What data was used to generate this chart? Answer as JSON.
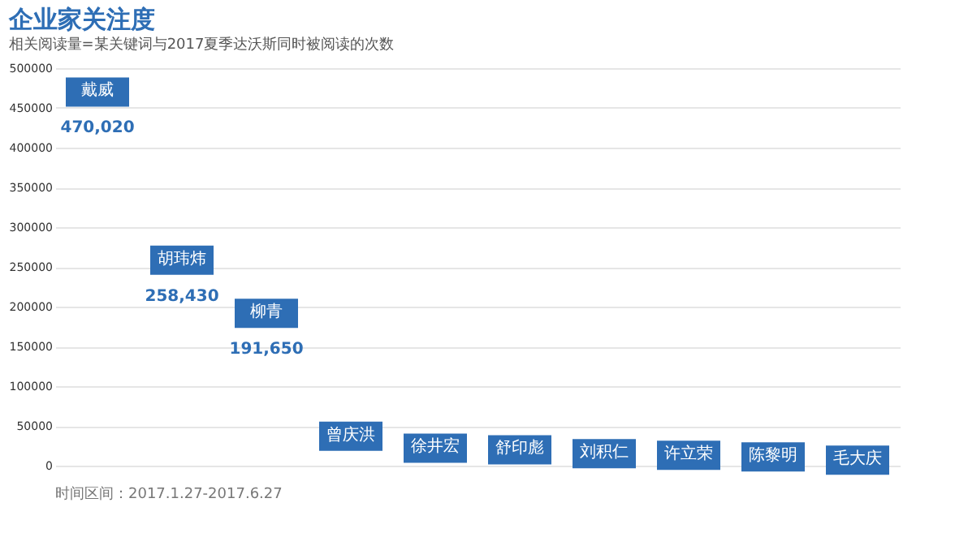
{
  "chart_data": {
    "type": "scatter",
    "title": "企业家关注度",
    "subtitle": "相关阅读量=某关键词与2017夏季达沃斯同时被阅读的次数",
    "categories": [
      "戴威",
      "胡玮炜",
      "柳青",
      "曾庆洪",
      "徐井宏",
      "舒印彪",
      "刘积仁",
      "许立荣",
      "陈黎明",
      "毛大庆"
    ],
    "series": [
      {
        "color": "#2e6eb5",
        "values": [
          470020,
          258430,
          191650,
          37000,
          22000,
          20000,
          15000,
          13000,
          11000,
          7000
        ],
        "value_labels": [
          "470,020",
          "258,430",
          "191,650",
          null,
          null,
          null,
          null,
          null,
          null,
          null
        ]
      }
    ],
    "ylim": [
      0,
      500000
    ],
    "yticks": [
      0,
      50000,
      100000,
      150000,
      200000,
      250000,
      300000,
      350000,
      400000,
      450000,
      500000
    ],
    "grid": "y",
    "marker": "square",
    "annotations": [
      "时间区间：2017.1.27-2017.6.27"
    ]
  }
}
